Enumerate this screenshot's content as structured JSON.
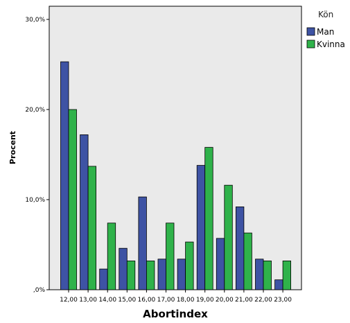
{
  "chart_data": {
    "type": "bar",
    "xlabel": "Abortindex",
    "ylabel": "Procent",
    "ylim": [
      0,
      30
    ],
    "yticks": [
      0,
      10,
      20,
      30
    ],
    "ytick_labels": [
      ",0%",
      "10,0%",
      "20,0%",
      "30,0%"
    ],
    "categories": [
      "12,00",
      "13,00",
      "14,00",
      "15,00",
      "16,00",
      "17,00",
      "18,00",
      "19,00",
      "20,00",
      "21,00",
      "22,00",
      "23,00"
    ],
    "legend_title": "Kön",
    "legend_position": "right",
    "grid": false,
    "series": [
      {
        "name": "Man",
        "color": "#3e53a4",
        "values": [
          25.3,
          17.2,
          2.3,
          4.6,
          10.3,
          3.4,
          3.4,
          13.8,
          5.7,
          9.2,
          3.4,
          1.1
        ]
      },
      {
        "name": "Kvinna",
        "color": "#2fb24a",
        "values": [
          20.0,
          13.7,
          7.4,
          3.2,
          3.2,
          7.4,
          5.3,
          15.8,
          11.6,
          6.3,
          3.2,
          3.2
        ]
      }
    ],
    "plot_background": "#eaeaea"
  }
}
